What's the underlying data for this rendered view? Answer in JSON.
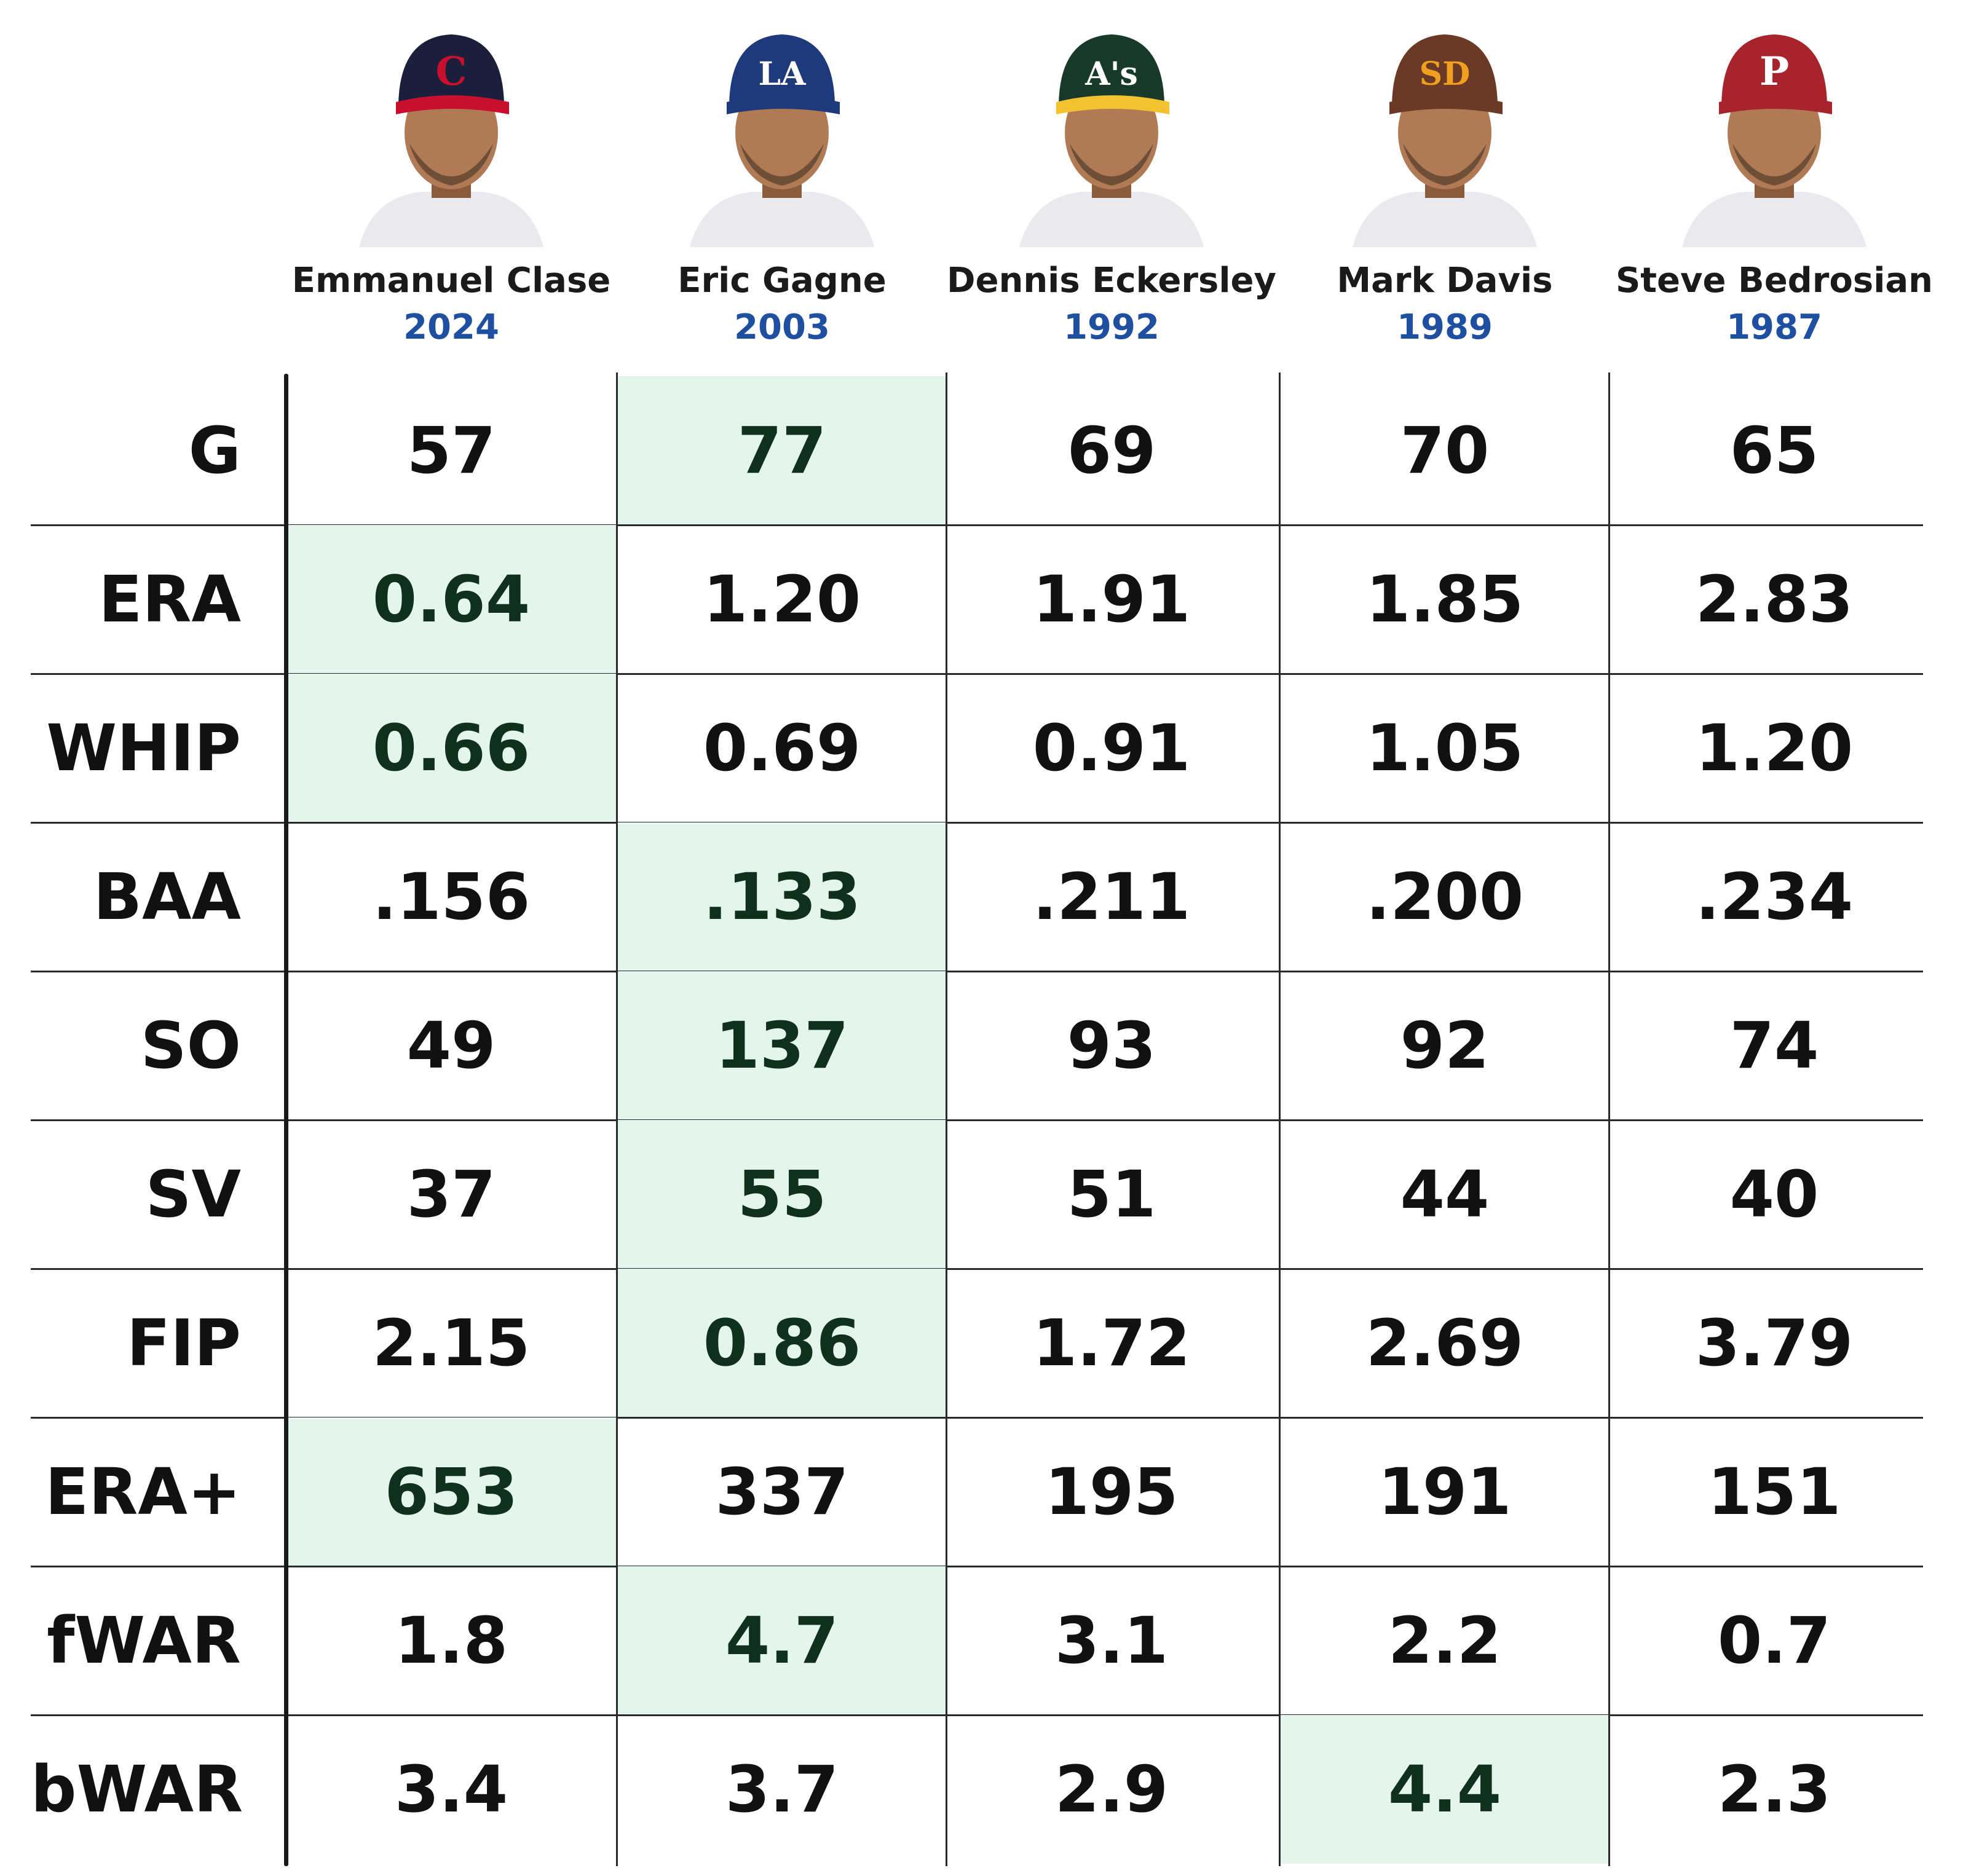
{
  "players": [
    {
      "name": "Emmanuel Clase",
      "year": "2024",
      "cap_icon": "cleveland-c-cap-icon",
      "cap_color": "#1b1f3b",
      "brim_color": "#c8102e",
      "logo_letter": "C",
      "logo_color": "#c8102e"
    },
    {
      "name": "Eric Gagne",
      "year": "2003",
      "cap_icon": "los-angeles-la-cap-icon",
      "cap_color": "#1f3a7a",
      "brim_color": "#1f3a7a",
      "logo_letter": "LA",
      "logo_color": "#ffffff"
    },
    {
      "name": "Dennis Eckersley",
      "year": "1992",
      "cap_icon": "oakland-as-cap-icon",
      "cap_color": "#173a2b",
      "brim_color": "#f2c230",
      "logo_letter": "A's",
      "logo_color": "#ffffff"
    },
    {
      "name": "Mark Davis",
      "year": "1989",
      "cap_icon": "san-diego-sd-cap-icon",
      "cap_color": "#6b3a26",
      "brim_color": "#6b3a26",
      "logo_letter": "SD",
      "logo_color": "#f0a020"
    },
    {
      "name": "Steve Bedrosian",
      "year": "1987",
      "cap_icon": "philadelphia-p-cap-icon",
      "cap_color": "#a8242c",
      "brim_color": "#a8242c",
      "logo_letter": "P",
      "logo_color": "#ffffff"
    }
  ],
  "stats": [
    {
      "label": "G",
      "values": [
        "57",
        "77",
        "69",
        "70",
        "65"
      ],
      "best_index": 1
    },
    {
      "label": "ERA",
      "values": [
        "0.64",
        "1.20",
        "1.91",
        "1.85",
        "2.83"
      ],
      "best_index": 0
    },
    {
      "label": "WHIP",
      "values": [
        "0.66",
        "0.69",
        "0.91",
        "1.05",
        "1.20"
      ],
      "best_index": 0
    },
    {
      "label": "BAA",
      "values": [
        ".156",
        ".133",
        ".211",
        ".200",
        ".234"
      ],
      "best_index": 1
    },
    {
      "label": "SO",
      "values": [
        "49",
        "137",
        "93",
        "92",
        "74"
      ],
      "best_index": 1
    },
    {
      "label": "SV",
      "values": [
        "37",
        "55",
        "51",
        "44",
        "40"
      ],
      "best_index": 1
    },
    {
      "label": "FIP",
      "values": [
        "2.15",
        "0.86",
        "1.72",
        "2.69",
        "3.79"
      ],
      "best_index": 1
    },
    {
      "label": "ERA+",
      "values": [
        "653",
        "337",
        "195",
        "191",
        "151"
      ],
      "best_index": 0
    },
    {
      "label": "fWAR",
      "values": [
        "1.8",
        "4.7",
        "3.1",
        "2.2",
        "0.7"
      ],
      "best_index": 1
    },
    {
      "label": "bWAR",
      "values": [
        "3.4",
        "3.7",
        "2.9",
        "4.4",
        "2.3"
      ],
      "best_index": 3
    }
  ],
  "colors": {
    "highlight": "#e3f5ec",
    "year_text": "#1f4fa0",
    "grid": "#2a2a2a"
  }
}
